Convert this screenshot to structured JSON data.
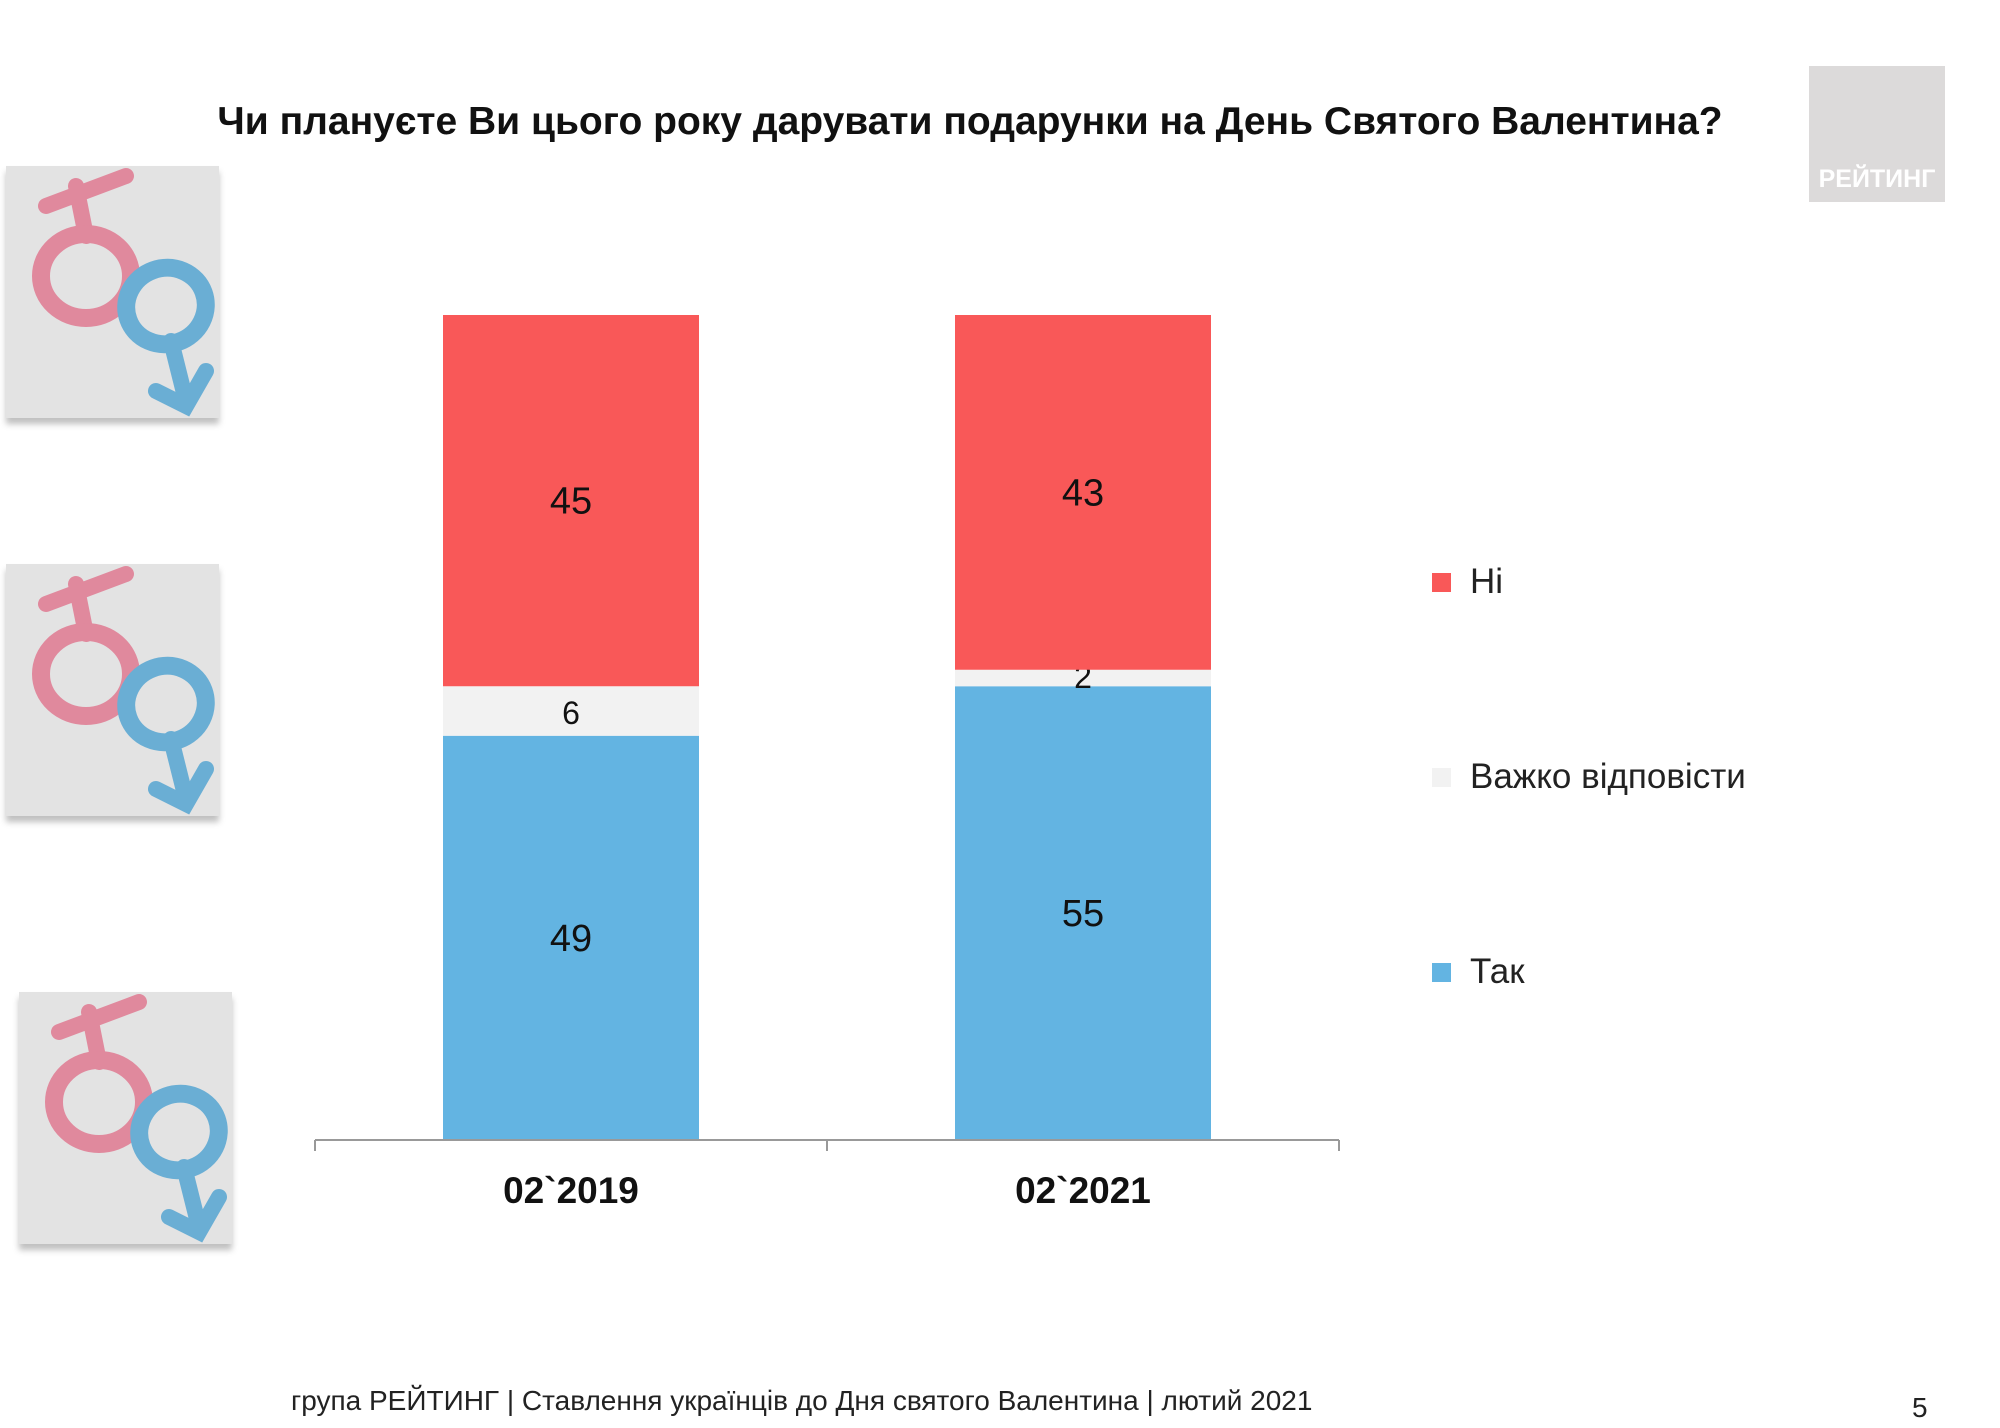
{
  "title": "Чи плануєте Ви цього року дарувати подарунки на День Святого Валентина?",
  "logo_text": "РЕЙТИНГ",
  "footer": "група РЕЙТИНГ | Ставлення українців до Дня святого Валентина | лютий 2021",
  "page_number": "5",
  "colors": {
    "Ні": "#F95858",
    "Важко відповісти": "#F2F2F2",
    "Так": "#63B4E2"
  },
  "chart_data": {
    "type": "bar",
    "stacked": true,
    "title": "Чи плануєте Ви цього року дарувати подарунки на День Святого Валентина?",
    "categories": [
      "02`2019",
      "02`2021"
    ],
    "series": [
      {
        "name": "Так",
        "values": [
          49,
          55
        ]
      },
      {
        "name": "Важко відповісти",
        "values": [
          6,
          2
        ]
      },
      {
        "name": "Ні",
        "values": [
          45,
          43
        ]
      }
    ],
    "ylim": [
      0,
      100
    ],
    "grid": false,
    "legend_placement": "right",
    "legend": [
      "Ні",
      "Важко відповісти",
      "Так"
    ]
  }
}
